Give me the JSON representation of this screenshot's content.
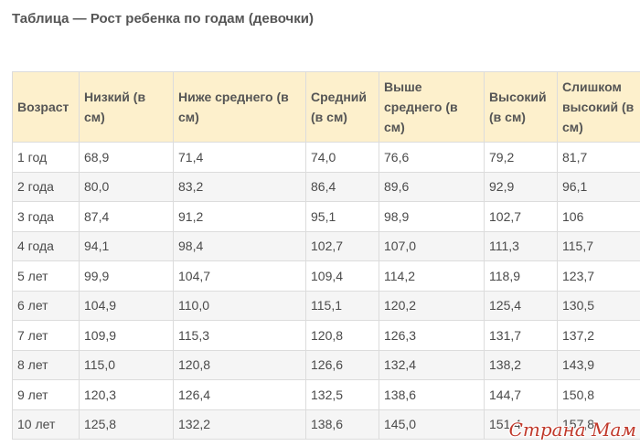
{
  "title": "Таблица — Рост ребенка по годам (девочки)",
  "table": {
    "headers": [
      "Возраст",
      "Низкий (в см)",
      "Ниже среднего (в см)",
      "Средний (в см)",
      "Выше среднего (в см)",
      "Высокий (в см)",
      "Слишком высокий (в см)"
    ],
    "rows": [
      [
        "1 год",
        "68,9",
        "71,4",
        "74,0",
        "76,6",
        "79,2",
        "81,7"
      ],
      [
        "2 года",
        "80,0",
        "83,2",
        "86,4",
        "89,6",
        "92,9",
        "96,1"
      ],
      [
        "3 года",
        "87,4",
        "91,2",
        "95,1",
        "98,9",
        "102,7",
        "106"
      ],
      [
        "4 года",
        "94,1",
        "98,4",
        "102,7",
        "107,0",
        "111,3",
        "115,7"
      ],
      [
        "5 лет",
        "99,9",
        "104,7",
        "109,4",
        "114,2",
        "118,9",
        "123,7"
      ],
      [
        "6 лет",
        "104,9",
        "110,0",
        "115,1",
        "120,2",
        "125,4",
        "130,5"
      ],
      [
        "7 лет",
        "109,9",
        "115,3",
        "120,8",
        "126,3",
        "131,7",
        "137,2"
      ],
      [
        "8 лет",
        "115,0",
        "120,8",
        "126,6",
        "132,4",
        "138,2",
        "143,9"
      ],
      [
        "9 лет",
        "120,3",
        "126,4",
        "132,5",
        "138,6",
        "144,7",
        "150,8"
      ],
      [
        "10 лет",
        "125,8",
        "132,2",
        "138,6",
        "145,0",
        "151,4",
        "157,8"
      ]
    ]
  },
  "watermark": "Страна Мам"
}
